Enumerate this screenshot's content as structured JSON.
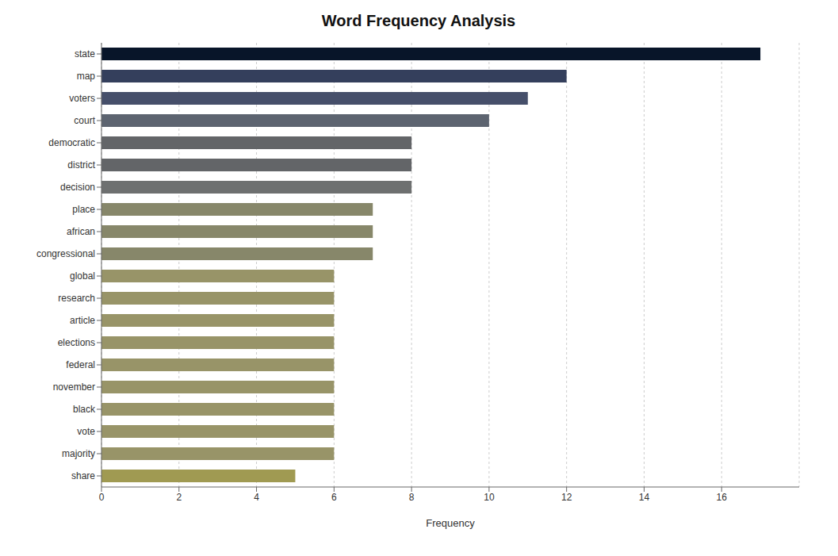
{
  "chart_data": {
    "type": "bar",
    "orientation": "horizontal",
    "title": "Word Frequency Analysis",
    "xlabel": "Frequency",
    "categories": [
      "state",
      "map",
      "voters",
      "court",
      "democratic",
      "district",
      "decision",
      "place",
      "african",
      "congressional",
      "global",
      "research",
      "article",
      "elections",
      "federal",
      "november",
      "black",
      "vote",
      "majority",
      "share"
    ],
    "values": [
      17,
      12,
      11,
      10,
      8,
      8,
      8,
      7,
      7,
      7,
      6,
      6,
      6,
      6,
      6,
      6,
      6,
      6,
      6,
      5
    ],
    "colors": [
      "#081529",
      "#343f5c",
      "#464f6a",
      "#5d6470",
      "#636568",
      "#636568",
      "#6e7070",
      "#87876a",
      "#87876a",
      "#87876a",
      "#989468",
      "#989468",
      "#989468",
      "#989468",
      "#989468",
      "#989468",
      "#989468",
      "#989468",
      "#989468",
      "#a09a52"
    ],
    "xlim": [
      0,
      18
    ],
    "xticks": [
      0,
      2,
      4,
      6,
      8,
      10,
      12,
      14,
      16
    ],
    "grid": true
  }
}
